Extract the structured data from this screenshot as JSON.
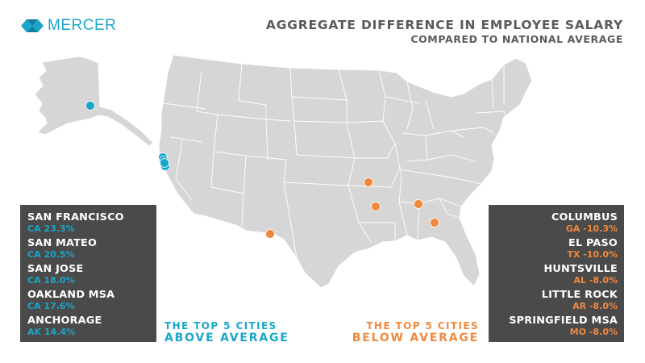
{
  "brand": {
    "name": "MERCER",
    "color": "#1aa6c9",
    "icon": "mercer-logo-icon"
  },
  "header": {
    "title": "AGGREGATE DIFFERENCE IN EMPLOYEE SALARY",
    "subtitle": "COMPARED TO NATIONAL AVERAGE"
  },
  "colors": {
    "above": "#1aa6c9",
    "below": "#f0893d",
    "land": "#d6d6d6",
    "panel": "#4a4a4a"
  },
  "above_average": {
    "caption_line1": "THE TOP 5 CITIES",
    "caption_line2": "ABOVE AVERAGE",
    "cities": [
      {
        "name": "SAN FRANCISCO",
        "state": "CA",
        "diff": "23.3%"
      },
      {
        "name": "SAN MATEO",
        "state": "CA",
        "diff": "20.5%"
      },
      {
        "name": "SAN JOSE",
        "state": "CA",
        "diff": "18.0%"
      },
      {
        "name": "OAKLAND MSA",
        "state": "CA",
        "diff": "17.6%"
      },
      {
        "name": "ANCHORAGE",
        "state": "AK",
        "diff": "14.4%"
      }
    ]
  },
  "below_average": {
    "caption_line1": "THE TOP 5 CITIES",
    "caption_line2": "BELOW AVERAGE",
    "cities": [
      {
        "name": "COLUMBUS",
        "state": "GA",
        "diff": "-10.3%"
      },
      {
        "name": "EL PASO",
        "state": "TX",
        "diff": "-10.0%"
      },
      {
        "name": "HUNTSVILLE",
        "state": "AL",
        "diff": "-8.0%"
      },
      {
        "name": "LITTLE ROCK",
        "state": "AR",
        "diff": "-8.0%"
      },
      {
        "name": "SPRINGFIELD MSA",
        "state": "MO",
        "diff": "-8.0%"
      }
    ]
  }
}
